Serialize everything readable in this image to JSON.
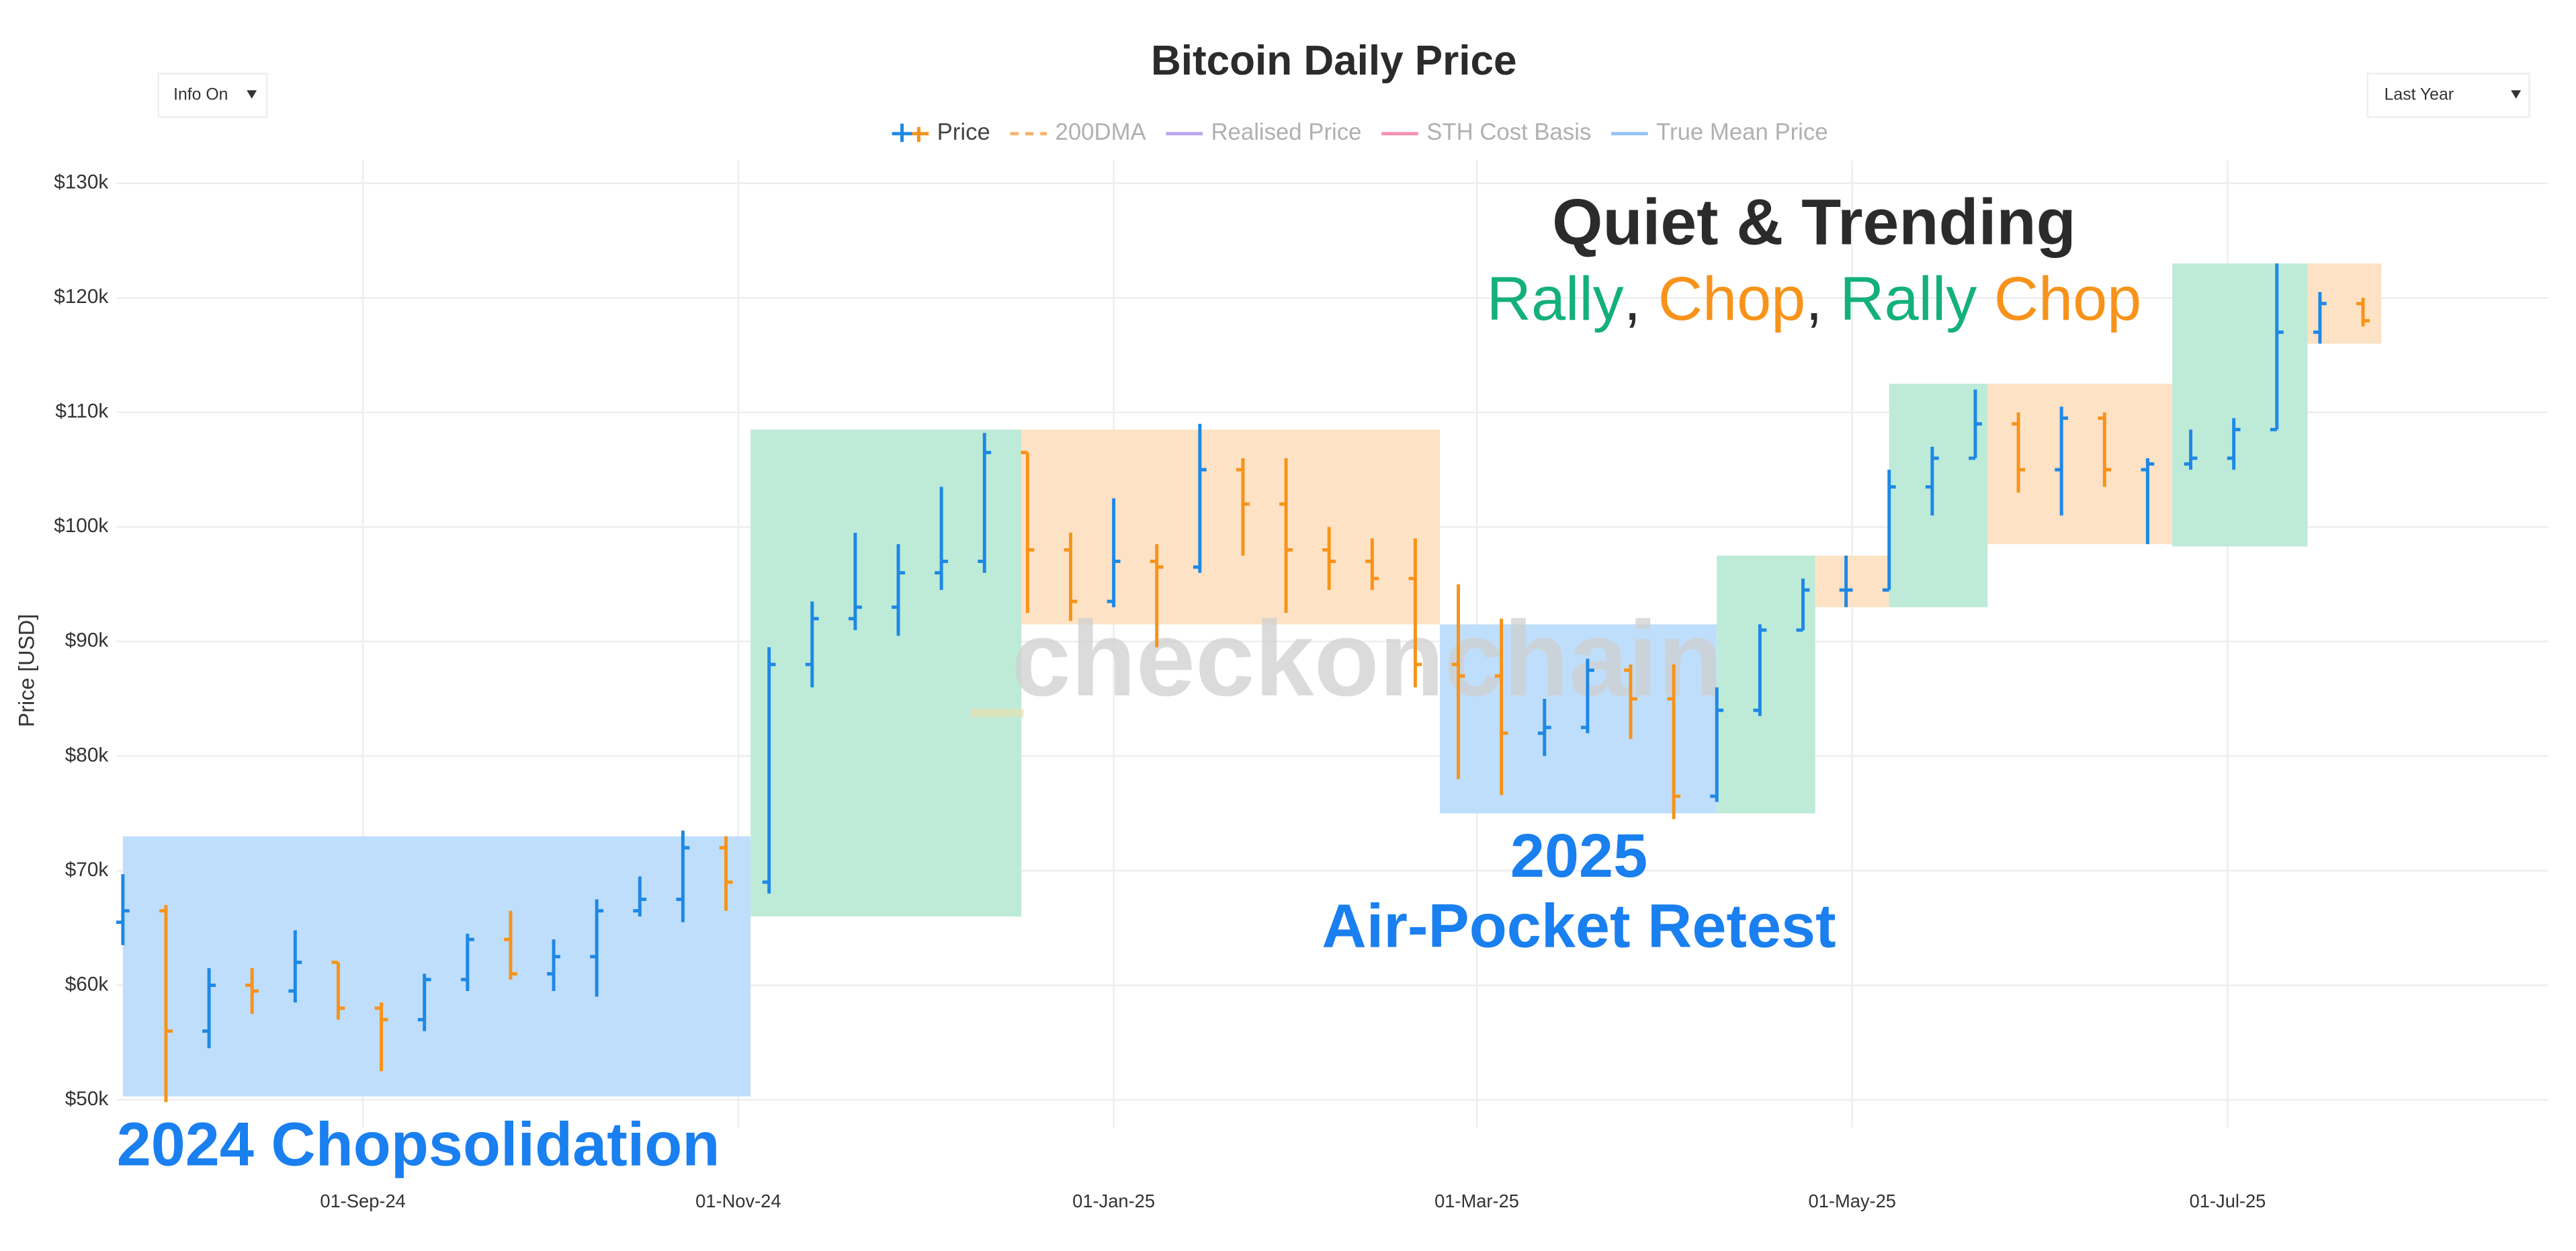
{
  "chart_data": {
    "type": "ohlc",
    "title": "Bitcoin Daily Price",
    "y_label": "Price [USD]",
    "controls": {
      "left": "Info On",
      "right": "Last Year"
    },
    "watermark": "checkonchain",
    "legend": [
      {
        "name": "Price",
        "color": "#1e88e5",
        "visible": true
      },
      {
        "name": "200DMA",
        "color": "#f7b267",
        "dash": true,
        "visible": false
      },
      {
        "name": "Realised Price",
        "color": "#b9a4f0",
        "visible": false
      },
      {
        "name": "STH Cost Basis",
        "color": "#f48fb1",
        "visible": false
      },
      {
        "name": "True Mean Price",
        "color": "#90c2f5",
        "visible": false
      }
    ],
    "up_color": "#1e88e5",
    "down_color": "#f7931a",
    "xlim": [
      "2024-07-23",
      "2025-08-22"
    ],
    "xticks": [
      {
        "value": "2024-09-01",
        "label": "01-Sep-24"
      },
      {
        "value": "2024-11-01",
        "label": "01-Nov-24"
      },
      {
        "value": "2025-01-01",
        "label": "01-Jan-25"
      },
      {
        "value": "2025-03-01",
        "label": "01-Mar-25"
      },
      {
        "value": "2025-05-01",
        "label": "01-May-25"
      },
      {
        "value": "2025-07-01",
        "label": "01-Jul-25"
      }
    ],
    "ylim": [
      47600,
      132000
    ],
    "yticks": [
      {
        "value": 50000,
        "label": "$50k"
      },
      {
        "value": 60000,
        "label": "$60k"
      },
      {
        "value": 70000,
        "label": "$70k"
      },
      {
        "value": 80000,
        "label": "$80k"
      },
      {
        "value": 90000,
        "label": "$90k"
      },
      {
        "value": 100000,
        "label": "$100k"
      },
      {
        "value": 110000,
        "label": "$110k"
      },
      {
        "value": 120000,
        "label": "$120k"
      },
      {
        "value": 130000,
        "label": "$130k"
      }
    ],
    "grid": true,
    "series": [
      {
        "name": "Price",
        "x": [
          "2024-07-24",
          "2024-07-31",
          "2024-08-07",
          "2024-08-14",
          "2024-08-21",
          "2024-08-28",
          "2024-09-04",
          "2024-09-11",
          "2024-09-18",
          "2024-09-25",
          "2024-10-02",
          "2024-10-09",
          "2024-10-16",
          "2024-10-23",
          "2024-10-30",
          "2024-11-06",
          "2024-11-13",
          "2024-11-20",
          "2024-11-27",
          "2024-12-04",
          "2024-12-11",
          "2024-12-18",
          "2024-12-25",
          "2025-01-01",
          "2025-01-08",
          "2025-01-15",
          "2025-01-22",
          "2025-01-29",
          "2025-02-05",
          "2025-02-12",
          "2025-02-19",
          "2025-02-26",
          "2025-03-05",
          "2025-03-12",
          "2025-03-19",
          "2025-03-26",
          "2025-04-02",
          "2025-04-09",
          "2025-04-16",
          "2025-04-23",
          "2025-04-30",
          "2025-05-07",
          "2025-05-14",
          "2025-05-21",
          "2025-05-28",
          "2025-06-04",
          "2025-06-11",
          "2025-06-18",
          "2025-06-25",
          "2025-07-02",
          "2025-07-09",
          "2025-07-16",
          "2025-07-23"
        ],
        "open": [
          65500,
          66500,
          56000,
          60000,
          59500,
          62000,
          58000,
          57000,
          60500,
          64000,
          61000,
          62500,
          66500,
          67500,
          72000,
          69000,
          88000,
          92000,
          93000,
          96000,
          97000,
          106500,
          98000,
          93500,
          97000,
          96500,
          105000,
          102000,
          98000,
          97000,
          95500,
          88000,
          87000,
          82000,
          82500,
          87500,
          85000,
          76500,
          84000,
          91000,
          94500,
          94500,
          103500,
          106000,
          109000,
          105000,
          109500,
          105000,
          105500,
          106000,
          108500,
          117000,
          119500
        ],
        "high": [
          69700,
          67000,
          61500,
          61500,
          64800,
          62000,
          58500,
          61000,
          64500,
          66500,
          64000,
          67500,
          69500,
          73500,
          73000,
          89500,
          93500,
          99500,
          98500,
          103500,
          108200,
          106500,
          99500,
          102500,
          98500,
          109000,
          106000,
          106000,
          100000,
          99000,
          99000,
          95000,
          92000,
          85000,
          88500,
          88000,
          88000,
          86000,
          91500,
          95500,
          97500,
          105000,
          107000,
          112000,
          110000,
          110500,
          110000,
          106000,
          108500,
          109500,
          123000,
          120500,
          120000
        ],
        "low": [
          63500,
          49800,
          54500,
          57500,
          58500,
          57000,
          52500,
          56000,
          59500,
          60500,
          59500,
          59000,
          66000,
          65500,
          66500,
          68000,
          86000,
          91000,
          90500,
          94500,
          96000,
          92500,
          91800,
          93000,
          89500,
          96000,
          97500,
          92500,
          94500,
          94500,
          86000,
          78000,
          76600,
          80000,
          82000,
          81500,
          74500,
          76000,
          83500,
          91000,
          93000,
          94500,
          101000,
          106000,
          103000,
          101000,
          103500,
          98500,
          105000,
          105000,
          108500,
          116000,
          117500
        ],
        "close": [
          66500,
          56000,
          60000,
          59500,
          62000,
          58000,
          57000,
          60500,
          64000,
          61000,
          62500,
          66500,
          67500,
          72000,
          69000,
          88000,
          92000,
          93000,
          96000,
          97000,
          106500,
          98000,
          93500,
          97000,
          96500,
          105000,
          102000,
          98000,
          97000,
          95500,
          88000,
          87000,
          82000,
          82500,
          87500,
          85000,
          76500,
          84000,
          91000,
          94500,
          94500,
          103500,
          106000,
          109000,
          105000,
          109500,
          105000,
          105500,
          106000,
          108500,
          117000,
          119500,
          118000
        ]
      }
    ],
    "regions": [
      {
        "x0": "2024-07-24",
        "x1": "2024-11-03",
        "y0": 50300,
        "y1": 73000,
        "color": "#bcdcfb"
      },
      {
        "x0": "2024-11-03",
        "x1": "2024-12-17",
        "y0": 66000,
        "y1": 108500,
        "color": "#b9ead6"
      },
      {
        "x0": "2024-12-17",
        "x1": "2025-02-23",
        "y0": 91500,
        "y1": 108500,
        "color": "#fde0c2"
      },
      {
        "x0": "2025-02-23",
        "x1": "2025-04-09",
        "y0": 75000,
        "y1": 91500,
        "color": "#bcdcfb"
      },
      {
        "x0": "2025-04-09",
        "x1": "2025-04-25",
        "y0": 75000,
        "y1": 97500,
        "color": "#b9ead6"
      },
      {
        "x0": "2025-04-25",
        "x1": "2025-05-07",
        "y0": 93000,
        "y1": 97500,
        "color": "#fde0c2"
      },
      {
        "x0": "2025-05-07",
        "x1": "2025-05-23",
        "y0": 93000,
        "y1": 112500,
        "color": "#b9ead6"
      },
      {
        "x0": "2025-05-23",
        "x1": "2025-06-22",
        "y0": 98500,
        "y1": 112500,
        "color": "#fde0c2"
      },
      {
        "x0": "2025-06-22",
        "x1": "2025-07-14",
        "y0": 98300,
        "y1": 123000,
        "color": "#b9ead6"
      },
      {
        "x0": "2025-07-14",
        "x1": "2025-07-26",
        "y0": 116000,
        "y1": 123000,
        "color": "#fde0c2"
      }
    ],
    "annotations": {
      "chop_2024": {
        "text": "2024 Chopsolidation",
        "color": "#1a7fef"
      },
      "retest_year": {
        "text": "2025",
        "color": "#1a7fef"
      },
      "retest": {
        "text": "Air-Pocket Retest",
        "color": "#1a7fef"
      },
      "quiet": {
        "text": "Quiet & Trending",
        "color": "#2b2b2b"
      },
      "phases": [
        {
          "text": "Rally",
          "color": "#14b07a"
        },
        {
          "text": ", ",
          "color": "#2b2b2b"
        },
        {
          "text": "Chop",
          "color": "#f7931a"
        },
        {
          "text": ", ",
          "color": "#2b2b2b"
        },
        {
          "text": "Rally",
          "color": "#14b07a"
        },
        {
          "text": " ",
          "color": "#2b2b2b"
        },
        {
          "text": "Chop",
          "color": "#f7931a"
        }
      ]
    }
  }
}
